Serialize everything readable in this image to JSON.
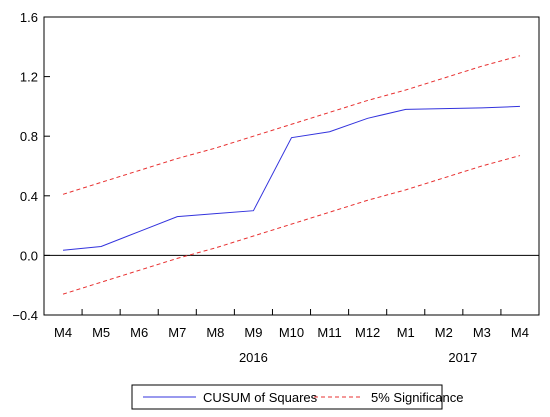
{
  "chart_data": {
    "type": "line",
    "categories": [
      "M4",
      "M5",
      "M6",
      "M7",
      "M8",
      "M9",
      "M10",
      "M11",
      "M12",
      "M1",
      "M2",
      "M3",
      "M4"
    ],
    "year_labels": [
      {
        "label": "2016",
        "at_index": 5
      },
      {
        "label": "2017",
        "at_index": 10.5
      }
    ],
    "ylim": [
      -0.4,
      1.6
    ],
    "yticks": [
      -0.4,
      0.0,
      0.4,
      0.8,
      1.2,
      1.6
    ],
    "ytick_labels": [
      "−0.4",
      "0.0",
      "0.4",
      "0.8",
      "1.2",
      "1.6"
    ],
    "zero_line": true,
    "series": [
      {
        "name": "CUSUM of Squares",
        "color": "#3333dd",
        "style": "solid",
        "values": [
          0.035,
          0.06,
          0.16,
          0.26,
          0.28,
          0.3,
          0.79,
          0.83,
          0.92,
          0.98,
          0.985,
          0.99,
          1.0
        ]
      },
      {
        "name": "5% Significance",
        "color": "#e83030",
        "style": "dashed",
        "values": [
          0.41,
          0.49,
          0.57,
          0.65,
          0.72,
          0.8,
          0.88,
          0.96,
          1.04,
          1.11,
          1.19,
          1.27,
          1.34
        ]
      },
      {
        "name": "5% Significance",
        "color": "#e83030",
        "style": "dashed",
        "legend": false,
        "values": [
          -0.26,
          -0.18,
          -0.1,
          -0.02,
          0.05,
          0.13,
          0.21,
          0.29,
          0.37,
          0.44,
          0.52,
          0.6,
          0.67
        ]
      }
    ],
    "legend": {
      "placement": "bottom-center",
      "entries": [
        "CUSUM of Squares",
        "5% Significance"
      ]
    }
  }
}
